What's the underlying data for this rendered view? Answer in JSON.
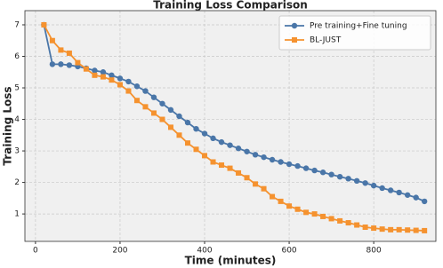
{
  "chart_data": {
    "type": "line",
    "title": "Training Loss Comparison",
    "x_label": "Time (minutes)",
    "y_label": "Training Loss",
    "x": [
      20,
      40,
      60,
      80,
      100,
      120,
      140,
      160,
      180,
      200,
      220,
      240,
      260,
      280,
      300,
      320,
      340,
      360,
      380,
      400,
      420,
      440,
      460,
      480,
      500,
      520,
      540,
      560,
      580,
      600,
      620,
      640,
      660,
      680,
      700,
      720,
      740,
      760,
      780,
      800,
      820,
      840,
      860,
      880,
      900,
      920
    ],
    "series": [
      {
        "name": "Pre training+Fine tuning",
        "color": "#4a76a8",
        "marker": "circle",
        "values": [
          7.0,
          5.75,
          5.75,
          5.72,
          5.68,
          5.62,
          5.55,
          5.5,
          5.4,
          5.3,
          5.2,
          5.05,
          4.9,
          4.7,
          4.5,
          4.3,
          4.1,
          3.9,
          3.7,
          3.55,
          3.4,
          3.28,
          3.18,
          3.08,
          2.98,
          2.88,
          2.8,
          2.72,
          2.65,
          2.58,
          2.52,
          2.45,
          2.38,
          2.32,
          2.25,
          2.18,
          2.12,
          2.05,
          1.98,
          1.9,
          1.82,
          1.75,
          1.68,
          1.6,
          1.52,
          1.4
        ]
      },
      {
        "name": "BL-JUST",
        "color": "#f5922f",
        "marker": "square",
        "values": [
          7.0,
          6.5,
          6.2,
          6.1,
          5.8,
          5.6,
          5.4,
          5.35,
          5.25,
          5.1,
          4.9,
          4.6,
          4.4,
          4.2,
          4.0,
          3.75,
          3.5,
          3.25,
          3.05,
          2.85,
          2.65,
          2.55,
          2.45,
          2.3,
          2.15,
          1.95,
          1.8,
          1.55,
          1.4,
          1.25,
          1.15,
          1.05,
          1.0,
          0.92,
          0.85,
          0.78,
          0.72,
          0.65,
          0.58,
          0.55,
          0.52,
          0.5,
          0.5,
          0.49,
          0.48,
          0.47
        ]
      }
    ],
    "xlim": [
      -25,
      947
    ],
    "xticks": [
      0,
      200,
      400,
      600,
      800
    ],
    "ylim": [
      0.13,
      7.45
    ],
    "yticks": [
      1,
      2,
      3,
      4,
      5,
      6,
      7
    ],
    "grid": true,
    "legend": "upper right"
  }
}
